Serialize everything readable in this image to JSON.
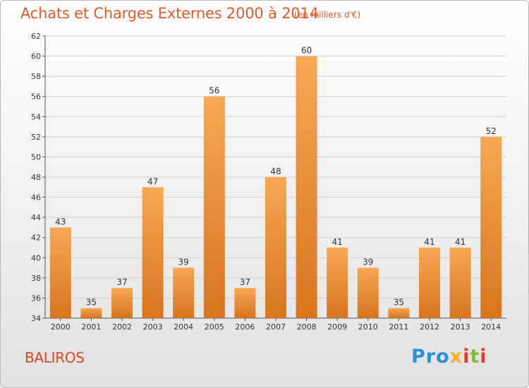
{
  "title": "Achats et Charges Externes 2000 à 2014",
  "subtitle": "(en milliers d'€)",
  "commune": "BALIROS",
  "logo": {
    "p1": "Pro",
    "p2": "x",
    "p3": "i",
    "p4": "t",
    "p5": "i"
  },
  "colors": {
    "bar_light": "#f7a852",
    "bar_dark": "#d8741e",
    "title": "#e05a2a",
    "grid": "#d0d0d0"
  },
  "chart_data": {
    "type": "bar",
    "title": "Achats et Charges Externes 2000 à 2014",
    "subtitle": "(en milliers d'€)",
    "categories": [
      "2000",
      "2001",
      "2002",
      "2003",
      "2004",
      "2005",
      "2006",
      "2007",
      "2008",
      "2009",
      "2010",
      "2011",
      "2012",
      "2013",
      "2014"
    ],
    "values": [
      43,
      35,
      37,
      47,
      39,
      56,
      37,
      48,
      60,
      41,
      39,
      35,
      41,
      41,
      52
    ],
    "ylim": [
      34,
      62
    ],
    "yticks": [
      34,
      36,
      38,
      40,
      42,
      44,
      46,
      48,
      50,
      52,
      54,
      56,
      58,
      60,
      62
    ],
    "grid": true,
    "xlabel": "",
    "ylabel": ""
  }
}
